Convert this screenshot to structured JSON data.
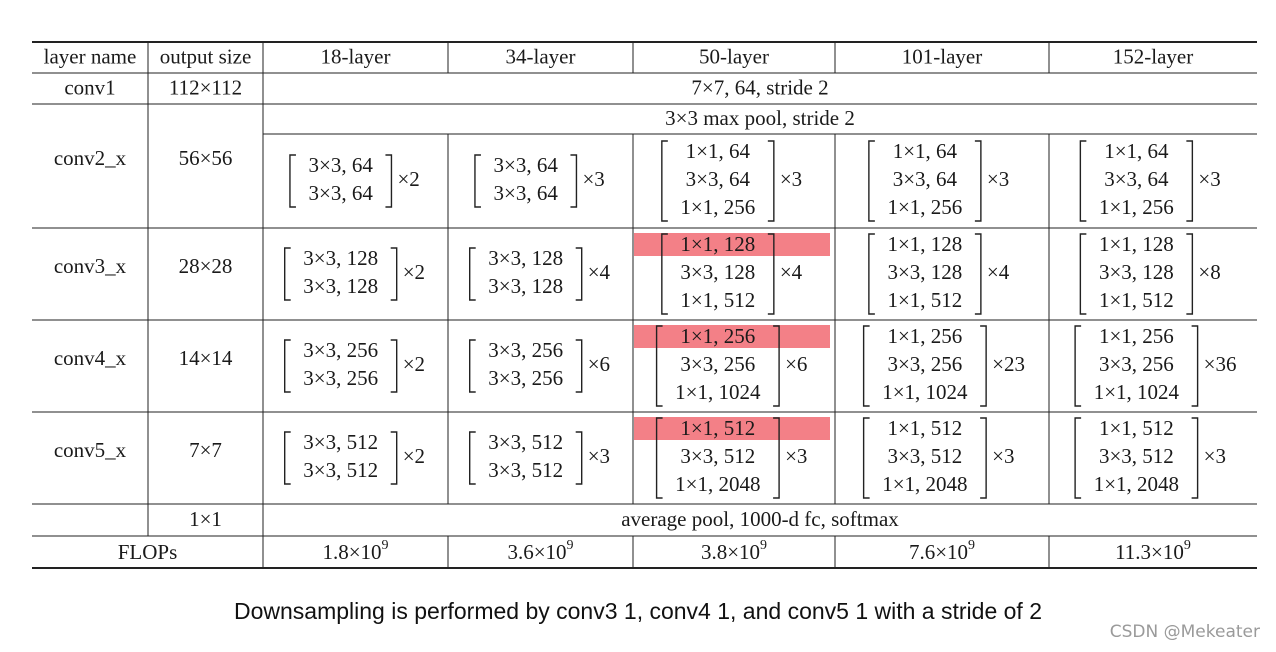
{
  "table": {
    "header": [
      "layer name",
      "output size",
      "18-layer",
      "34-layer",
      "50-layer",
      "101-layer",
      "152-layer"
    ],
    "conv1": {
      "name": "conv1",
      "output": "112×112",
      "spec": "7×7, 64, stride 2"
    },
    "maxpool": "3×3 max pool, stride 2",
    "stages": [
      {
        "name": "conv2_x",
        "output": "56×56",
        "cells": [
          {
            "lines": [
              "3×3, 64",
              "3×3, 64"
            ],
            "mult": "×2"
          },
          {
            "lines": [
              "3×3, 64",
              "3×3, 64"
            ],
            "mult": "×3"
          },
          {
            "lines": [
              "1×1, 64",
              "3×3, 64",
              "1×1, 256"
            ],
            "mult": "×3"
          },
          {
            "lines": [
              "1×1, 64",
              "3×3, 64",
              "1×1, 256"
            ],
            "mult": "×3"
          },
          {
            "lines": [
              "1×1, 64",
              "3×3, 64",
              "1×1, 256"
            ],
            "mult": "×3"
          }
        ]
      },
      {
        "name": "conv3_x",
        "output": "28×28",
        "cells": [
          {
            "lines": [
              "3×3, 128",
              "3×3, 128"
            ],
            "mult": "×2"
          },
          {
            "lines": [
              "3×3, 128",
              "3×3, 128"
            ],
            "mult": "×4"
          },
          {
            "lines": [
              "1×1, 128",
              "3×3, 128",
              "1×1, 512"
            ],
            "mult": "×4",
            "highlight": true
          },
          {
            "lines": [
              "1×1, 128",
              "3×3, 128",
              "1×1, 512"
            ],
            "mult": "×4"
          },
          {
            "lines": [
              "1×1, 128",
              "3×3, 128",
              "1×1, 512"
            ],
            "mult": "×8"
          }
        ]
      },
      {
        "name": "conv4_x",
        "output": "14×14",
        "cells": [
          {
            "lines": [
              "3×3, 256",
              "3×3, 256"
            ],
            "mult": "×2"
          },
          {
            "lines": [
              "3×3, 256",
              "3×3, 256"
            ],
            "mult": "×6"
          },
          {
            "lines": [
              "1×1, 256",
              "3×3, 256",
              "1×1, 1024"
            ],
            "mult": "×6",
            "highlight": true
          },
          {
            "lines": [
              "1×1, 256",
              "3×3, 256",
              "1×1, 1024"
            ],
            "mult": "×23"
          },
          {
            "lines": [
              "1×1, 256",
              "3×3, 256",
              "1×1, 1024"
            ],
            "mult": "×36"
          }
        ]
      },
      {
        "name": "conv5_x",
        "output": "7×7",
        "cells": [
          {
            "lines": [
              "3×3, 512",
              "3×3, 512"
            ],
            "mult": "×2"
          },
          {
            "lines": [
              "3×3, 512",
              "3×3, 512"
            ],
            "mult": "×3"
          },
          {
            "lines": [
              "1×1, 512",
              "3×3, 512",
              "1×1, 2048"
            ],
            "mult": "×3",
            "highlight": true
          },
          {
            "lines": [
              "1×1, 512",
              "3×3, 512",
              "1×1, 2048"
            ],
            "mult": "×3"
          },
          {
            "lines": [
              "1×1, 512",
              "3×3, 512",
              "1×1, 2048"
            ],
            "mult": "×3"
          }
        ]
      }
    ],
    "pool": {
      "output": "1×1",
      "spec": "average pool, 1000-d fc, softmax"
    },
    "flops": {
      "label": "FLOPs",
      "values": [
        {
          "mantissa": "1.8×10",
          "exp": "9"
        },
        {
          "mantissa": "3.6×10",
          "exp": "9"
        },
        {
          "mantissa": "3.8×10",
          "exp": "9"
        },
        {
          "mantissa": "7.6×10",
          "exp": "9"
        },
        {
          "mantissa": "11.3×10",
          "exp": "9"
        }
      ]
    }
  },
  "highlight_color": "#f16a72",
  "caption": "Downsampling is performed by conv3 1, conv4 1, and conv5 1 with a stride of 2",
  "watermark": "CSDN @Mekeater"
}
